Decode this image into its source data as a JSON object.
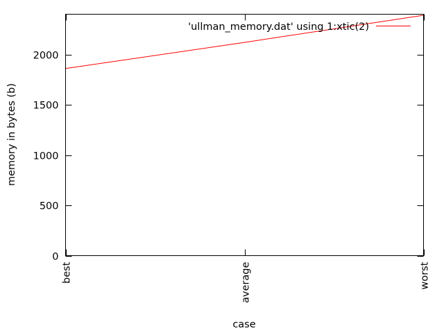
{
  "chart_data": {
    "type": "line",
    "title": "",
    "xlabel": "case",
    "ylabel": "memory in bytes (b)",
    "categories": [
      "best",
      "average",
      "worst"
    ],
    "ylim": [
      0,
      2400
    ],
    "yticks": [
      0,
      500,
      1000,
      1500,
      2000
    ],
    "grid": false,
    "legend_position": "top-right",
    "series": [
      {
        "name": "'ullman_memory.dat' using 1:xtic(2)",
        "values": [
          1860,
          2120,
          2390
        ],
        "color": "#ff0000"
      }
    ]
  }
}
